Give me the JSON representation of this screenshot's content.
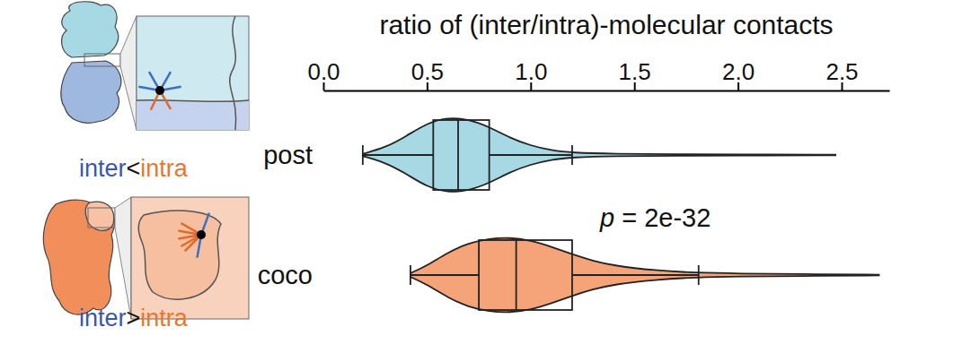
{
  "chart_data": {
    "type": "violin",
    "title": "ratio of (inter/intra)-molecular contacts",
    "xlim": [
      0,
      2.73
    ],
    "xticks": [
      {
        "value": 0,
        "label": "0.0"
      },
      0.5,
      {
        "value": 1,
        "label": "1.0"
      },
      1.5,
      {
        "value": 2,
        "label": "2.0"
      },
      2.5
    ],
    "annotation": "p = 2e-32",
    "icon_labels": [
      "inter<intra",
      "inter>intra"
    ],
    "series": [
      {
        "name": "post",
        "color": "#a7d9e4",
        "whisker_low": 0.19,
        "q1": 0.53,
        "median": 0.65,
        "q3": 0.8,
        "whisker_high": 1.2,
        "violin": {
          "x": [
            0.19,
            0.3,
            0.4,
            0.5,
            0.6,
            0.7,
            0.8,
            0.9,
            1.0,
            1.1,
            1.2,
            1.4,
            1.7,
            2.0,
            2.47
          ],
          "density": [
            0.03,
            0.2,
            0.5,
            0.85,
            1.0,
            0.95,
            0.75,
            0.45,
            0.25,
            0.12,
            0.06,
            0.03,
            0.02,
            0.015,
            0.01
          ]
        }
      },
      {
        "name": "coco",
        "color": "#f5a47a",
        "whisker_low": 0.42,
        "q1": 0.75,
        "median": 0.93,
        "q3": 1.2,
        "whisker_high": 1.81,
        "violin": {
          "x": [
            0.42,
            0.5,
            0.6,
            0.7,
            0.8,
            0.9,
            1.0,
            1.1,
            1.2,
            1.3,
            1.4,
            1.6,
            1.8,
            2.0,
            2.3,
            2.68
          ],
          "density": [
            0.05,
            0.25,
            0.6,
            0.85,
            0.97,
            1.0,
            0.92,
            0.75,
            0.55,
            0.38,
            0.25,
            0.12,
            0.06,
            0.04,
            0.025,
            0.01
          ]
        }
      }
    ]
  }
}
